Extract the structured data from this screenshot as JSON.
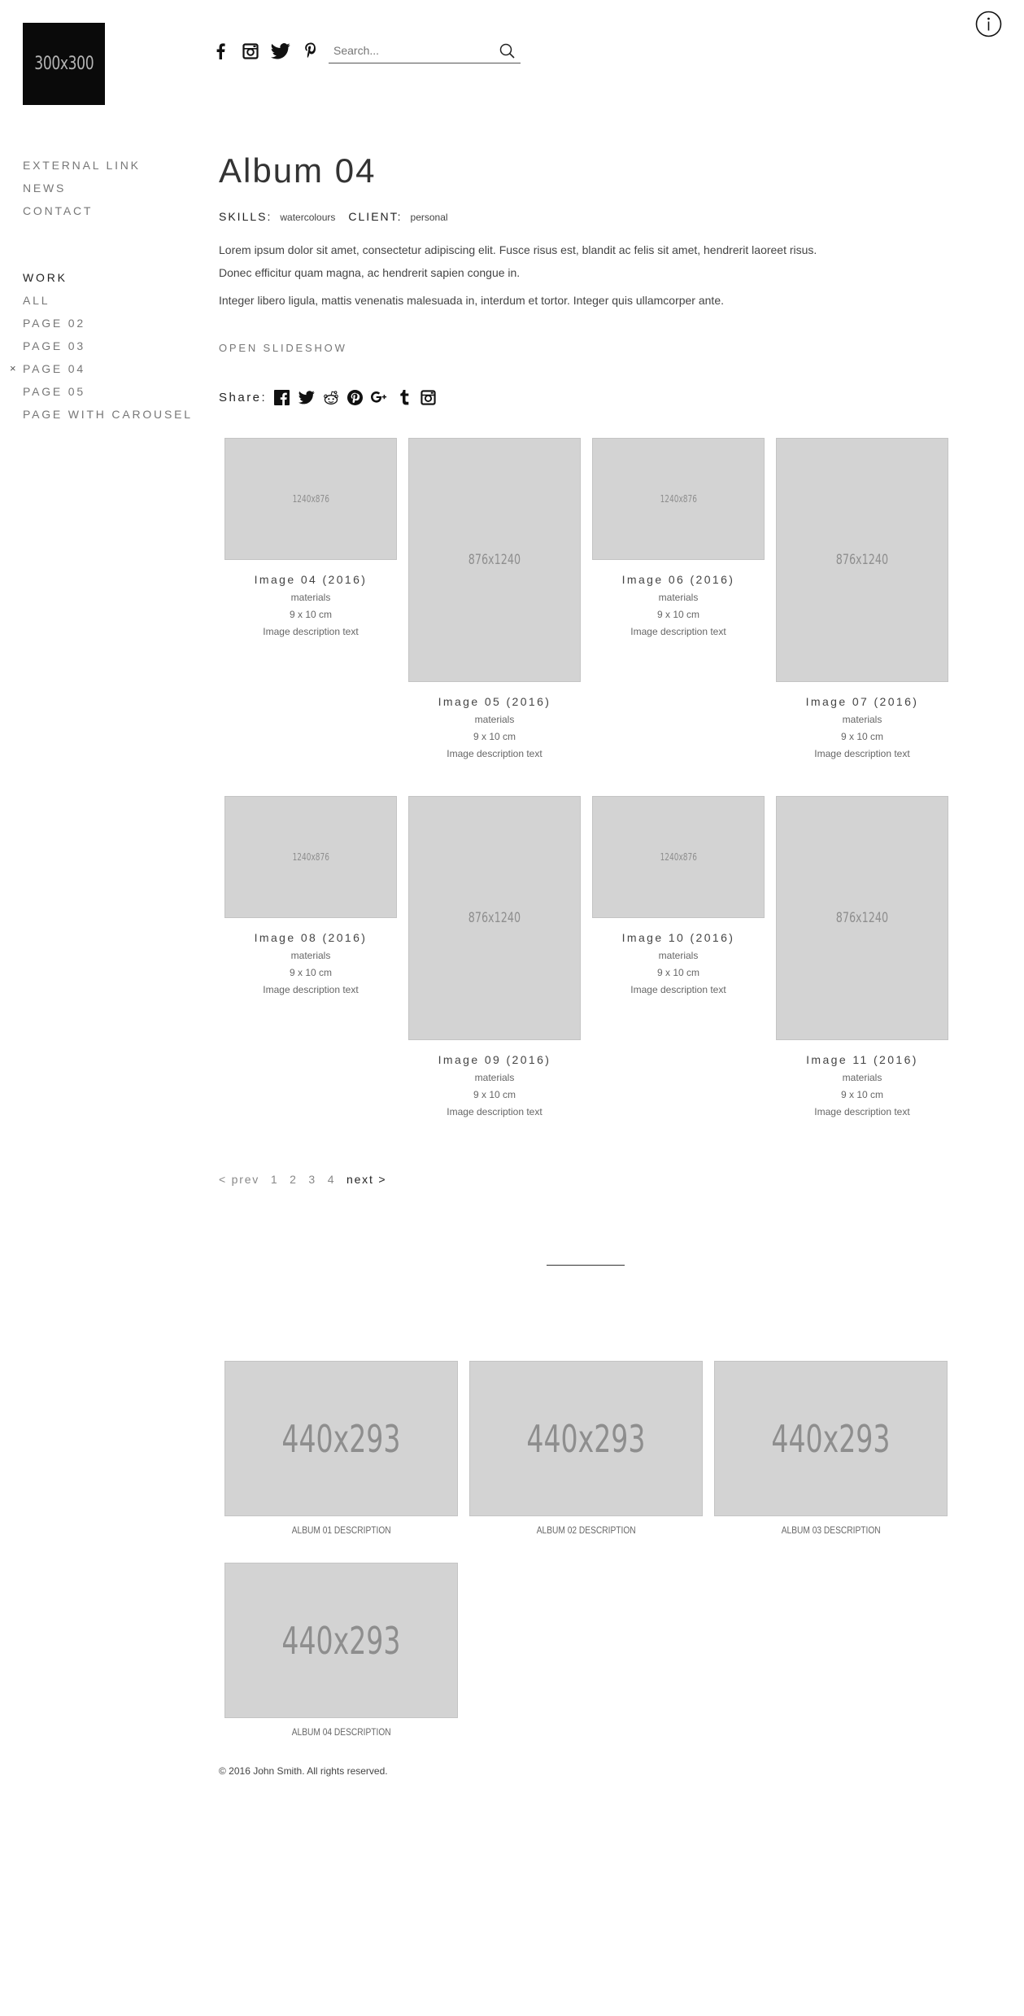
{
  "logo": {
    "text": "300x300"
  },
  "header": {
    "social": [
      "facebook-icon",
      "instagram-icon",
      "twitter-icon",
      "pinterest-icon"
    ],
    "search_placeholder": "Search..."
  },
  "nav": {
    "top": [
      "EXTERNAL LINK",
      "NEWS",
      "CONTACT"
    ],
    "section_title": "WORK",
    "work": [
      "ALL",
      "PAGE 02",
      "PAGE 03",
      "PAGE 04",
      "PAGE 05",
      "PAGE WITH CAROUSEL"
    ],
    "current_marker": "×",
    "current_index": 3
  },
  "page": {
    "title": "Album 04",
    "skills_label": "SKILLS:",
    "skills_value": "watercolours",
    "client_label": "CLIENT:",
    "client_value": "personal",
    "paragraph1": "Lorem ipsum dolor sit amet, consectetur adipiscing elit. Fusce risus est, blandit ac felis sit amet, hendrerit laoreet risus. Donec efficitur quam magna, ac hendrerit sapien congue in.",
    "paragraph2": "Integer libero ligula, mattis venenatis malesuada in, interdum et tortor. Integer quis ullamcorper ante.",
    "slideshow_label": "OPEN SLIDESHOW",
    "share_label": "Share:",
    "share_icons": [
      "facebook-icon",
      "twitter-icon",
      "reddit-icon",
      "pinterest-icon",
      "google-plus-icon",
      "tumblr-icon",
      "instagram-icon"
    ]
  },
  "gallery": [
    {
      "ph": "1240x876",
      "title": "Image 04 (2016)",
      "materials": "materials",
      "size": "9 x 10 cm",
      "desc": "Image description text"
    },
    {
      "ph": "876x1240",
      "title": "Image 05 (2016)",
      "materials": "materials",
      "size": "9 x 10 cm",
      "desc": "Image description text"
    },
    {
      "ph": "1240x876",
      "title": "Image 06 (2016)",
      "materials": "materials",
      "size": "9 x 10 cm",
      "desc": "Image description text"
    },
    {
      "ph": "876x1240",
      "title": "Image 07 (2016)",
      "materials": "materials",
      "size": "9 x 10 cm",
      "desc": "Image description text"
    },
    {
      "ph": "1240x876",
      "title": "Image 08 (2016)",
      "materials": "materials",
      "size": "9 x 10 cm",
      "desc": "Image description text"
    },
    {
      "ph": "876x1240",
      "title": "Image 09 (2016)",
      "materials": "materials",
      "size": "9 x 10 cm",
      "desc": "Image description text"
    },
    {
      "ph": "1240x876",
      "title": "Image 10 (2016)",
      "materials": "materials",
      "size": "9 x 10 cm",
      "desc": "Image description text"
    },
    {
      "ph": "876x1240",
      "title": "Image 11 (2016)",
      "materials": "materials",
      "size": "9 x 10 cm",
      "desc": "Image description text"
    }
  ],
  "pagination": {
    "prev": "< prev",
    "pages": [
      "1",
      "2",
      "3",
      "4"
    ],
    "next": "next >"
  },
  "albums": [
    {
      "ph": "440x293",
      "desc": "ALBUM 01 DESCRIPTION"
    },
    {
      "ph": "440x293",
      "desc": "ALBUM 02 DESCRIPTION"
    },
    {
      "ph": "440x293",
      "desc": "ALBUM 03 DESCRIPTION"
    },
    {
      "ph": "440x293",
      "desc": "ALBUM 04 DESCRIPTION"
    }
  ],
  "footer": {
    "text": "© 2016 John Smith. All rights reserved."
  }
}
